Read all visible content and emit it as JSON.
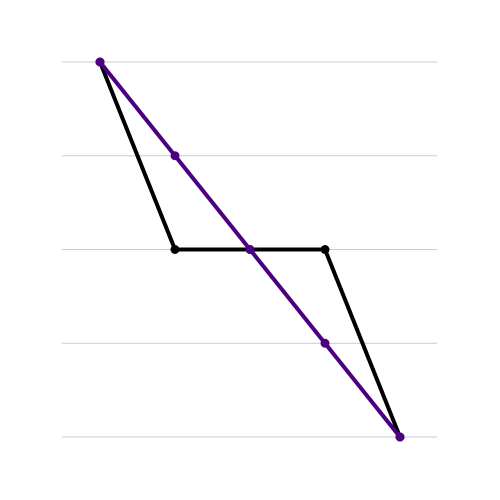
{
  "chart_data": {
    "type": "line",
    "title": "",
    "xlabel": "",
    "ylabel": "",
    "x": [
      0,
      1,
      2,
      3,
      4
    ],
    "xlim": [
      0,
      4
    ],
    "ylim": [
      0,
      4
    ],
    "grid": "horizontal",
    "gridlines_y": [
      0,
      1,
      2,
      3,
      4
    ],
    "axes_visible": false,
    "tick_labels_visible": false,
    "legend": "none",
    "series": [
      {
        "color": "#000000",
        "values": [
          4,
          2,
          2,
          2,
          0
        ]
      },
      {
        "color": "#4b0082",
        "values": [
          4,
          3,
          2,
          1,
          0
        ]
      }
    ]
  }
}
